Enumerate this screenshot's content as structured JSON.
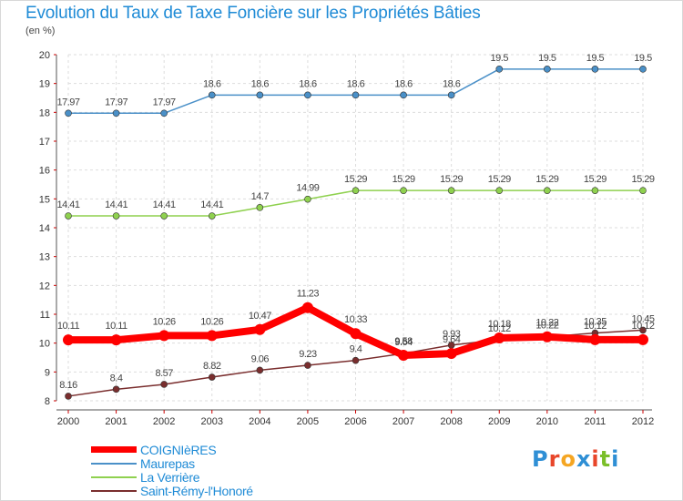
{
  "header": {
    "title": "Evolution du Taux de Taxe Foncière sur les Propriétés Bâties",
    "subtitle": "(en %)"
  },
  "logo": {
    "text": "Proxiti",
    "colors": [
      "#2f8fd5",
      "#e8462a",
      "#f5a623",
      "#2f8fd5",
      "#e8462a",
      "#7bbf2a",
      "#2f8fd5"
    ]
  },
  "chart_data": {
    "type": "line",
    "title": "Evolution du Taux de Taxe Foncière sur les Propriétés Bâties",
    "ylabel": "(en %)",
    "xlabel": "",
    "x": [
      "2000",
      "2001",
      "2002",
      "2003",
      "2004",
      "2005",
      "2006",
      "2007",
      "2008",
      "2009",
      "2010",
      "2011",
      "2012"
    ],
    "ylim": [
      8,
      20
    ],
    "yticks": [
      "8",
      "9",
      "10",
      "11",
      "12",
      "13",
      "14",
      "15",
      "16",
      "17",
      "18",
      "19",
      "20"
    ],
    "grid": true,
    "legend_position": "bottom-left",
    "series": [
      {
        "name": "COIGNIèRES",
        "color": "#ff0000",
        "values": [
          10.11,
          10.11,
          10.26,
          10.26,
          10.47,
          11.23,
          10.33,
          9.58,
          9.64,
          10.18,
          10.22,
          10.12,
          10.12
        ],
        "labels": [
          "10.11",
          "10.11",
          "10.26",
          "10.26",
          "10.47",
          "11.23",
          "10.33",
          "9.58",
          "9.64",
          "10.18",
          "10.22",
          "10.12",
          "10.12"
        ]
      },
      {
        "name": "Maurepas",
        "color": "#4a90c8",
        "values": [
          17.97,
          17.97,
          17.97,
          18.6,
          18.6,
          18.6,
          18.6,
          18.6,
          18.6,
          19.5,
          19.5,
          19.5,
          19.5
        ],
        "labels": [
          "17.97",
          "17.97",
          "17.97",
          "18.6",
          "18.6",
          "18.6",
          "18.6",
          "18.6",
          "18.6",
          "19.5",
          "19.5",
          "19.5",
          "19.5"
        ]
      },
      {
        "name": "La Verrière",
        "color": "#8fd14f",
        "values": [
          14.41,
          14.41,
          14.41,
          14.41,
          14.7,
          14.99,
          15.29,
          15.29,
          15.29,
          15.29,
          15.29,
          15.29,
          15.29
        ],
        "labels": [
          "14.41",
          "14.41",
          "14.41",
          "14.41",
          "14.7",
          "14.99",
          "15.29",
          "15.29",
          "15.29",
          "15.29",
          "15.29",
          "15.29",
          "15.29"
        ]
      },
      {
        "name": "Saint-Rémy-l'Honoré",
        "color": "#7a2e2e",
        "values": [
          8.16,
          8.4,
          8.57,
          8.82,
          9.06,
          9.23,
          9.4,
          9.64,
          9.93,
          10.12,
          10.22,
          10.35,
          10.45
        ],
        "labels": [
          "8.16",
          "8.4",
          "8.57",
          "8.82",
          "9.06",
          "9.23",
          "9.4",
          "9.64",
          "9.93",
          "10.12",
          "10.22",
          "10.35",
          "10.45"
        ]
      }
    ]
  }
}
